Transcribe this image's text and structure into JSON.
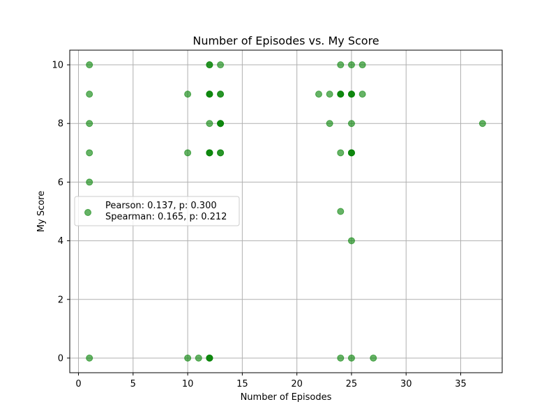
{
  "chart_data": {
    "type": "scatter",
    "title": "Number of Episodes vs. My Score",
    "xlabel": "Number of Episodes",
    "ylabel": "My Score",
    "xlim": [
      -0.8,
      38.8
    ],
    "ylim": [
      -0.5,
      10.5
    ],
    "xticks": [
      0,
      5,
      10,
      15,
      20,
      25,
      30,
      35
    ],
    "yticks": [
      0,
      2,
      4,
      6,
      8,
      10
    ],
    "grid": true,
    "legend_position": "center-left",
    "series": [
      {
        "name": "Pearson: 0.137, p: 0.300\nSpearman: 0.165, p: 0.212",
        "legend_lines": [
          "Pearson: 0.137, p: 0.300",
          "Spearman: 0.165, p: 0.212"
        ],
        "color": "#008000",
        "alpha": 0.6,
        "points": [
          [
            1,
            10
          ],
          [
            1,
            9
          ],
          [
            1,
            8
          ],
          [
            1,
            7
          ],
          [
            1,
            6
          ],
          [
            1,
            0
          ],
          [
            10,
            9
          ],
          [
            10,
            7
          ],
          [
            10,
            0
          ],
          [
            11,
            0
          ],
          [
            12,
            10
          ],
          [
            12,
            10
          ],
          [
            12,
            9
          ],
          [
            12,
            9
          ],
          [
            12,
            9
          ],
          [
            12,
            8
          ],
          [
            12,
            7
          ],
          [
            12,
            7
          ],
          [
            12,
            7
          ],
          [
            12,
            0
          ],
          [
            12,
            0
          ],
          [
            12,
            0
          ],
          [
            13,
            10
          ],
          [
            13,
            9
          ],
          [
            13,
            9
          ],
          [
            13,
            8
          ],
          [
            13,
            8
          ],
          [
            13,
            8
          ],
          [
            13,
            7
          ],
          [
            13,
            7
          ],
          [
            22,
            9
          ],
          [
            23,
            9
          ],
          [
            23,
            8
          ],
          [
            24,
            10
          ],
          [
            24,
            9
          ],
          [
            24,
            9
          ],
          [
            24,
            9
          ],
          [
            24,
            7
          ],
          [
            24,
            5
          ],
          [
            24,
            0
          ],
          [
            25,
            10
          ],
          [
            25,
            9
          ],
          [
            25,
            9
          ],
          [
            25,
            9
          ],
          [
            25,
            8
          ],
          [
            25,
            7
          ],
          [
            25,
            7
          ],
          [
            25,
            7
          ],
          [
            25,
            4
          ],
          [
            25,
            0
          ],
          [
            26,
            10
          ],
          [
            26,
            9
          ],
          [
            27,
            0
          ],
          [
            37,
            8
          ]
        ]
      }
    ]
  }
}
